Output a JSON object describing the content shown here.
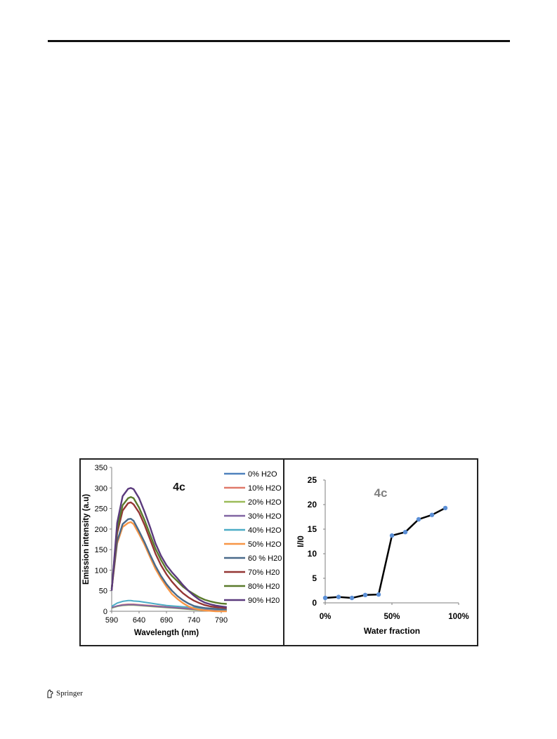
{
  "footer": {
    "publisher": "Springer",
    "icon": "springer-horse-icon"
  },
  "chart_data": [
    {
      "type": "line",
      "panel_label": "4c",
      "xlabel": "Wavelength (nm)",
      "ylabel": "Emission intensity (a.u)",
      "xlim": [
        590,
        790
      ],
      "ylim": [
        0,
        350
      ],
      "xticks": [
        "590",
        "640",
        "690",
        "740",
        "790"
      ],
      "yticks": [
        "0",
        "50",
        "100",
        "150",
        "200",
        "250",
        "300",
        "350"
      ],
      "x": [
        590,
        600,
        610,
        620,
        625,
        630,
        640,
        650,
        660,
        670,
        680,
        690,
        700,
        710,
        720,
        730,
        740,
        750,
        760,
        770,
        780,
        790,
        800
      ],
      "legend_position": "right",
      "series": [
        {
          "name": "0% H2O",
          "color": "#4f81bd",
          "values": [
            8,
            12,
            15,
            16,
            16,
            16,
            15,
            14,
            13,
            12,
            11,
            10,
            9,
            8,
            7,
            6,
            5,
            4,
            3,
            2,
            1,
            1,
            1
          ]
        },
        {
          "name": "10% H2O",
          "color": "#e0796a",
          "values": [
            9,
            13,
            16,
            17,
            17,
            17,
            16,
            15,
            14,
            13,
            12,
            11,
            10,
            9,
            8,
            7,
            6,
            5,
            4,
            3,
            2,
            1,
            1
          ]
        },
        {
          "name": "20% H2O",
          "color": "#9bbb59",
          "values": [
            8,
            12,
            14,
            15,
            15,
            15,
            14,
            13,
            12,
            11,
            10,
            9,
            8,
            7,
            6,
            5,
            4,
            3,
            2,
            2,
            1,
            1,
            1
          ]
        },
        {
          "name": "30% H2O",
          "color": "#8064a2",
          "values": [
            9,
            13,
            15,
            16,
            16,
            16,
            15,
            14,
            13,
            12,
            11,
            10,
            9,
            8,
            7,
            6,
            5,
            4,
            3,
            2,
            2,
            1,
            1
          ]
        },
        {
          "name": "40% H2O",
          "color": "#4bacc6",
          "values": [
            12,
            20,
            24,
            26,
            26,
            25,
            24,
            22,
            20,
            18,
            16,
            14,
            13,
            12,
            11,
            10,
            9,
            8,
            7,
            6,
            5,
            4,
            4
          ]
        },
        {
          "name": "50% H2O",
          "color": "#f79646",
          "values": [
            55,
            165,
            205,
            215,
            217,
            212,
            188,
            162,
            132,
            103,
            80,
            60,
            42,
            30,
            20,
            12,
            7,
            4,
            2,
            1,
            0,
            0,
            0
          ]
        },
        {
          "name": "60 % H20",
          "color": "#4a6a8a",
          "values": [
            55,
            170,
            212,
            224,
            225,
            220,
            195,
            168,
            138,
            110,
            86,
            66,
            50,
            37,
            27,
            19,
            13,
            10,
            8,
            7,
            6,
            5,
            5
          ]
        },
        {
          "name": "70% H20",
          "color": "#943634",
          "values": [
            52,
            190,
            245,
            263,
            265,
            260,
            240,
            210,
            175,
            140,
            112,
            90,
            72,
            57,
            44,
            34,
            26,
            20,
            15,
            12,
            10,
            9,
            8
          ]
        },
        {
          "name": "80% H20",
          "color": "#5a7a2b",
          "values": [
            55,
            200,
            258,
            275,
            278,
            275,
            252,
            222,
            187,
            152,
            125,
            102,
            86,
            73,
            60,
            50,
            42,
            34,
            28,
            24,
            21,
            19,
            18
          ]
        },
        {
          "name": "90% H20",
          "color": "#5b3a7d",
          "values": [
            50,
            215,
            280,
            298,
            300,
            297,
            275,
            242,
            205,
            165,
            135,
            112,
            95,
            80,
            64,
            50,
            38,
            28,
            21,
            17,
            14,
            12,
            10
          ]
        }
      ]
    },
    {
      "type": "line",
      "panel_label": "4c",
      "xlabel": "Water fraction",
      "ylabel": "I/I0",
      "xlim": [
        0,
        100
      ],
      "ylim": [
        0,
        25
      ],
      "xticks": [
        "0%",
        "50%",
        "100%"
      ],
      "yticks": [
        "0",
        "5",
        "10",
        "15",
        "20",
        "25"
      ],
      "series": [
        {
          "color": "#000000",
          "marker_color": "#5b8fd6",
          "x": [
            0,
            10,
            20,
            30,
            40,
            50,
            60,
            70,
            80,
            90
          ],
          "values": [
            1.0,
            1.2,
            1.0,
            1.6,
            1.7,
            13.7,
            14.4,
            17.0,
            17.9,
            19.3
          ]
        }
      ]
    }
  ]
}
